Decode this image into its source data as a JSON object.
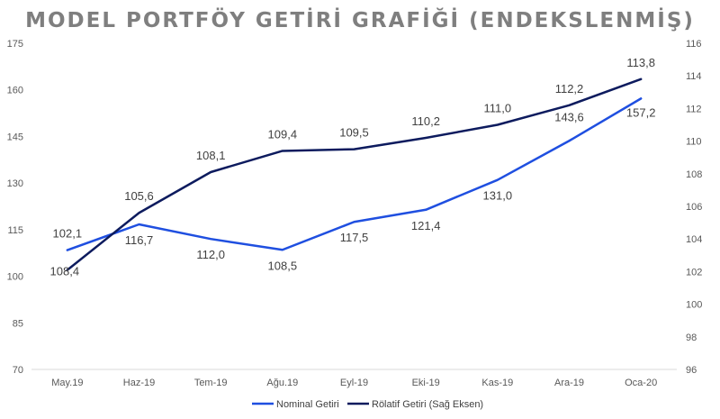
{
  "chart_data": {
    "type": "line",
    "title": "MODEL PORTFÖY GETİRİ GRAFİĞİ (ENDEKSLENMİŞ)",
    "categories": [
      "May.19",
      "Haz-19",
      "Tem-19",
      "Ağu.19",
      "Eyl-19",
      "Eki-19",
      "Kas-19",
      "Ara-19",
      "Oca-20"
    ],
    "y_left": {
      "min": 70,
      "max": 175,
      "ticks": [
        70,
        85,
        100,
        115,
        130,
        145,
        160,
        175
      ]
    },
    "y_right": {
      "min": 96,
      "max": 116,
      "ticks": [
        96,
        98,
        100,
        102,
        104,
        106,
        108,
        110,
        112,
        114,
        116
      ]
    },
    "series": [
      {
        "name": "Nominal Getiri",
        "axis": "left",
        "color": "#1f4fe0",
        "values": [
          108.4,
          116.7,
          112.0,
          108.5,
          117.5,
          121.4,
          131.0,
          143.6,
          157.2
        ],
        "labels": [
          "108,4",
          "116,7",
          "112,0",
          "108,5",
          "117,5",
          "121,4",
          "131,0",
          "143,6",
          "157,2"
        ]
      },
      {
        "name": "Rölatif Getiri (Sağ Eksen)",
        "axis": "right",
        "color": "#0d1b5e",
        "values": [
          102.1,
          105.6,
          108.1,
          109.4,
          109.5,
          110.2,
          111.0,
          112.2,
          113.8
        ],
        "labels": [
          "102,1",
          "105,6",
          "108,1",
          "109,4",
          "109,5",
          "110,2",
          "111,0",
          "112,2",
          "113,8"
        ]
      }
    ],
    "legend_position": "bottom"
  }
}
